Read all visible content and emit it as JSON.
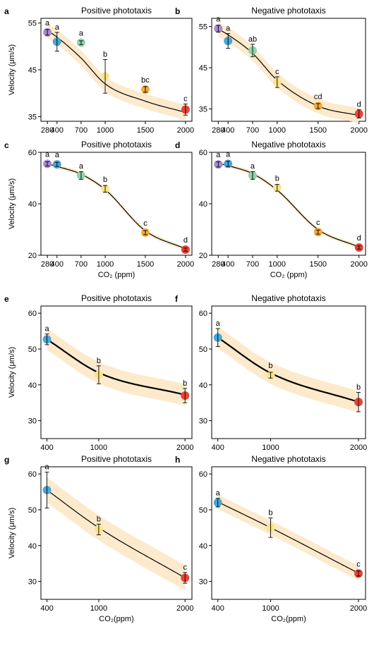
{
  "figure": {
    "colors": {
      "band": "#fde9c9",
      "curve": "#000000",
      "errorbar": "#000000",
      "purple": "#a78bd0",
      "blue": "#4aa6d6",
      "green": "#8fd4ae",
      "yellow": "#fbe58a",
      "orange": "#f4a93a",
      "red": "#e8433a"
    }
  },
  "chart_data": [
    {
      "panel": "a",
      "type": "scatter",
      "title": "Positive phototaxis",
      "ylabel": "Velocity (μm/s)",
      "xlabel": "",
      "x": [
        280,
        400,
        700,
        1000,
        1500,
        2000
      ],
      "xticks": [
        "280",
        "400",
        "700",
        "1000",
        "1500",
        "2000"
      ],
      "y": [
        53.0,
        51.0,
        50.8,
        43.6,
        40.8,
        36.5
      ],
      "err": [
        0.6,
        2.0,
        0.4,
        3.6,
        0.6,
        1.2
      ],
      "letters": [
        "a",
        "a",
        "a",
        "b",
        "bc",
        "c"
      ],
      "point_colors": [
        "purple",
        "blue",
        "green",
        "yellow",
        "orange",
        "red"
      ],
      "curve": [
        53.4,
        52.0,
        47.5,
        42.0,
        38.3,
        35.9
      ],
      "ylim": [
        34,
        56
      ],
      "yticks": [
        35,
        45,
        55
      ],
      "band_halfwidth": 1.6,
      "curve_width": 1.2
    },
    {
      "panel": "b",
      "type": "scatter",
      "title": "Negative phototaxis",
      "ylabel": "",
      "xlabel": "",
      "x": [
        280,
        400,
        700,
        1000,
        1500,
        2000
      ],
      "xticks": [
        "280",
        "400",
        "700",
        "1000",
        "1500",
        "2000"
      ],
      "y": [
        54.5,
        51.5,
        49.2,
        41.5,
        35.7,
        33.8
      ],
      "err": [
        0.8,
        1.8,
        1.5,
        1.3,
        0.6,
        1.0
      ],
      "letters": [
        "a",
        "a",
        "ab",
        "c",
        "cd",
        "d"
      ],
      "point_colors": [
        "purple",
        "blue",
        "green",
        "yellow",
        "orange",
        "red"
      ],
      "curve": [
        54.4,
        53.0,
        48.5,
        42.0,
        35.7,
        33.4
      ],
      "ylim": [
        32,
        57
      ],
      "yticks": [
        35,
        45,
        55
      ],
      "band_halfwidth": 1.8,
      "curve_width": 1.2
    },
    {
      "panel": "c",
      "type": "scatter",
      "title": "Positive phototaxis",
      "ylabel": "Velocity (μm/s)",
      "xlabel": "CO₂ (ppm)",
      "x": [
        280,
        400,
        700,
        1000,
        1500,
        2000
      ],
      "xticks": [
        "280",
        "400",
        "700",
        "1000",
        "1500",
        "2000"
      ],
      "y": [
        55.5,
        55.3,
        51.0,
        45.8,
        28.8,
        22.2
      ],
      "err": [
        0.8,
        0.8,
        1.5,
        1.3,
        0.8,
        0.6
      ],
      "letters": [
        "a",
        "a",
        "a",
        "b",
        "c",
        "d"
      ],
      "point_colors": [
        "purple",
        "blue",
        "green",
        "yellow",
        "orange",
        "red"
      ],
      "curve": [
        55.5,
        54.5,
        51.5,
        45.5,
        29.5,
        22.5
      ],
      "ylim": [
        20,
        60
      ],
      "yticks": [
        20,
        40,
        60
      ],
      "band_halfwidth": 0.8,
      "curve_width": 1.2
    },
    {
      "panel": "d",
      "type": "scatter",
      "title": "Negative phototaxis",
      "ylabel": "",
      "xlabel": "CO₂ (ppm)",
      "x": [
        280,
        400,
        700,
        1000,
        1500,
        2000
      ],
      "xticks": [
        "280",
        "400",
        "700",
        "1000",
        "1500",
        "2000"
      ],
      "y": [
        55.3,
        55.5,
        51.0,
        46.2,
        29.0,
        23.0
      ],
      "err": [
        1.0,
        1.0,
        1.5,
        1.3,
        0.8,
        0.6
      ],
      "letters": [
        "a",
        "a",
        "a",
        "b",
        "c",
        "d"
      ],
      "point_colors": [
        "purple",
        "blue",
        "green",
        "yellow",
        "orange",
        "red"
      ],
      "curve": [
        55.7,
        54.8,
        51.7,
        45.3,
        30.0,
        23.2
      ],
      "ylim": [
        20,
        60
      ],
      "yticks": [
        20,
        40,
        60
      ],
      "band_halfwidth": 0.8,
      "curve_width": 1.2
    },
    {
      "panel": "e",
      "type": "scatter",
      "title": "Positive phototaxis",
      "ylabel": "Velocity (μm/s)",
      "xlabel": "",
      "x": [
        400,
        1000,
        2000
      ],
      "xticks": [
        "400",
        "1000",
        "2000"
      ],
      "y": [
        52.7,
        42.8,
        37.0
      ],
      "err": [
        1.5,
        2.5,
        2.0
      ],
      "letters": [
        "a",
        "b",
        "b"
      ],
      "point_colors": [
        "blue",
        "yellow",
        "red"
      ],
      "curve": [
        52.7,
        43.4,
        37.2
      ],
      "ylim": [
        25,
        62
      ],
      "yticks": [
        30,
        40,
        50,
        60
      ],
      "band_halfwidth": 3.0,
      "curve_width": 2.2
    },
    {
      "panel": "f",
      "type": "scatter",
      "title": "Negative phototaxis",
      "ylabel": "",
      "xlabel": "",
      "x": [
        400,
        1000,
        2000
      ],
      "xticks": [
        "400",
        "1000",
        "2000"
      ],
      "y": [
        53.2,
        42.7,
        35.2
      ],
      "err": [
        2.5,
        0.8,
        2.7
      ],
      "letters": [
        "a",
        "b",
        "b"
      ],
      "point_colors": [
        "blue",
        "yellow",
        "red"
      ],
      "curve": [
        53.2,
        43.3,
        35.2
      ],
      "ylim": [
        25,
        62
      ],
      "yticks": [
        30,
        40,
        50,
        60
      ],
      "band_halfwidth": 3.0,
      "curve_width": 2.2
    },
    {
      "panel": "g",
      "type": "scatter",
      "title": "Positive phototaxis",
      "ylabel": "Velocity (μm/s)",
      "xlabel": "CO₂(ppm)",
      "x": [
        400,
        1000,
        2000
      ],
      "xticks": [
        "400",
        "1000",
        "2000"
      ],
      "y": [
        55.5,
        44.5,
        31.0
      ],
      "err": [
        5.0,
        1.5,
        1.5
      ],
      "letters": [
        "a",
        "b",
        "c"
      ],
      "point_colors": [
        "blue",
        "yellow",
        "red"
      ],
      "curve": [
        55.5,
        45.0,
        31.0
      ],
      "ylim": [
        25,
        62
      ],
      "yticks": [
        30,
        40,
        50,
        60
      ],
      "band_halfwidth": 3.5,
      "curve_width": 1.2
    },
    {
      "panel": "h",
      "type": "scatter",
      "title": "Negative phototaxis",
      "ylabel": "",
      "xlabel": "CO₂(ppm)",
      "x": [
        400,
        1000,
        2000
      ],
      "xticks": [
        "400",
        "1000",
        "2000"
      ],
      "y": [
        52.0,
        45.0,
        32.2
      ],
      "err": [
        1.2,
        2.7,
        0.7
      ],
      "letters": [
        "a",
        "b",
        "c"
      ],
      "point_colors": [
        "blue",
        "yellow",
        "red"
      ],
      "curve": [
        52.2,
        45.0,
        32.3
      ],
      "ylim": [
        25,
        62
      ],
      "yticks": [
        30,
        40,
        50,
        60
      ],
      "band_halfwidth": 2.0,
      "curve_width": 1.2
    }
  ]
}
